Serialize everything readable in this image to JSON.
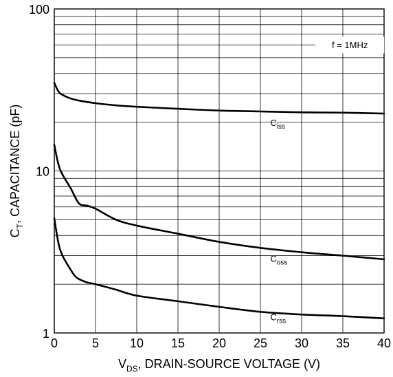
{
  "chart_data": {
    "type": "line",
    "title": "",
    "xlabel": {
      "main": "V",
      "sub": "DS",
      "rest": ", DRAIN-SOURCE VOLTAGE (V)"
    },
    "ylabel": {
      "main": "C",
      "sub": "T",
      "rest": ", CAPACITANCE (pF)"
    },
    "xlim": [
      0,
      40
    ],
    "ylim": [
      1,
      100
    ],
    "yscale": "log",
    "grid": true,
    "x_ticks": [
      "0",
      "5",
      "10",
      "15",
      "20",
      "25",
      "30",
      "35",
      "40"
    ],
    "y_ticks": [
      "1",
      "10",
      "100"
    ],
    "annotation": "f = 1MHz",
    "series": [
      {
        "name": "Ciss",
        "label_main": "C",
        "label_sub": "iss",
        "x": [
          0,
          0.5,
          1,
          2,
          3,
          5,
          7.5,
          10,
          15,
          20,
          25,
          30,
          35,
          40
        ],
        "y": [
          35,
          31,
          29.5,
          28,
          27.2,
          26.2,
          25.4,
          24.9,
          24.2,
          23.6,
          23.3,
          23.0,
          22.9,
          22.6
        ]
      },
      {
        "name": "Coss",
        "label_main": "C",
        "label_sub": "oss",
        "x": [
          0,
          0.5,
          1,
          2,
          3,
          4,
          5,
          7.5,
          10,
          15,
          20,
          25,
          30,
          35,
          40
        ],
        "y": [
          14.5,
          11,
          9.5,
          7.8,
          6.3,
          6.1,
          5.85,
          5.0,
          4.6,
          4.1,
          3.65,
          3.35,
          3.15,
          3.0,
          2.85
        ]
      },
      {
        "name": "Crss",
        "label_main": "C",
        "label_sub": "rss",
        "x": [
          0,
          0.5,
          1,
          2,
          2.5,
          3,
          4,
          5,
          7.5,
          10,
          15,
          20,
          25,
          30,
          35,
          40
        ],
        "y": [
          5.1,
          3.6,
          3.0,
          2.45,
          2.25,
          2.15,
          2.05,
          2.0,
          1.85,
          1.7,
          1.57,
          1.45,
          1.35,
          1.3,
          1.27,
          1.23
        ]
      }
    ]
  }
}
